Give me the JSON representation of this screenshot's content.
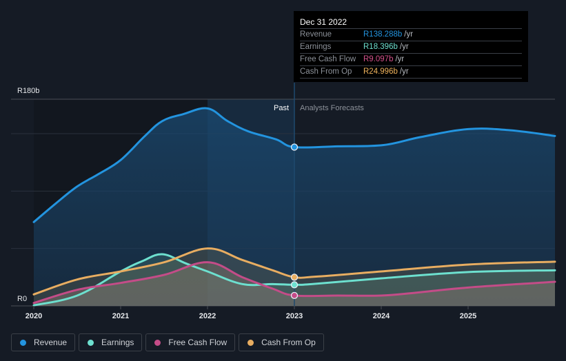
{
  "tooltip": {
    "date": "Dec 31 2022",
    "rows": [
      {
        "label": "Revenue",
        "value": "R138.288b",
        "unit": "/yr",
        "color": "#2394df"
      },
      {
        "label": "Earnings",
        "value": "R18.396b",
        "unit": "/yr",
        "color": "#6de0cf"
      },
      {
        "label": "Free Cash Flow",
        "value": "R9.097b",
        "unit": "/yr",
        "color": "#d6528c"
      },
      {
        "label": "Cash From Op",
        "value": "R24.996b",
        "unit": "/yr",
        "color": "#f0b35c"
      }
    ]
  },
  "legend": [
    {
      "label": "Revenue",
      "color": "#2394df"
    },
    {
      "label": "Earnings",
      "color": "#6de0cf"
    },
    {
      "label": "Free Cash Flow",
      "color": "#c44c88"
    },
    {
      "label": "Cash From Op",
      "color": "#e8ad61"
    }
  ],
  "chart_data": {
    "type": "area",
    "title": "",
    "xlabel": "",
    "ylabel": "",
    "y_unit": "R (billions)",
    "ylim": [
      0,
      180
    ],
    "xlim": [
      2020,
      2026
    ],
    "y_tick_labels": [
      {
        "value": 180,
        "label": "R180b"
      },
      {
        "value": 0,
        "label": "R0"
      }
    ],
    "y_gridlines": [
      0,
      50,
      100,
      150,
      180
    ],
    "x_ticks": [
      2020,
      2021,
      2022,
      2023,
      2024,
      2025
    ],
    "x_tick_labels": [
      "2020",
      "2021",
      "2022",
      "2023",
      "2024",
      "2025"
    ],
    "present_x": 2023.0,
    "region_labels": {
      "past": "Past",
      "forecast": "Analysts Forecasts"
    },
    "highlight_band": [
      2022.0,
      2023.0
    ],
    "series": [
      {
        "name": "Revenue",
        "color": "#2394df",
        "x": [
          2020.0,
          2020.25,
          2020.5,
          2020.75,
          2021.0,
          2021.28,
          2021.48,
          2021.72,
          2022.0,
          2022.23,
          2022.47,
          2022.79,
          2023.0,
          2023.5,
          2024.02,
          2024.45,
          2025.0,
          2025.48,
          2026.0
        ],
        "y": [
          73,
          89,
          104,
          115,
          127,
          148,
          161,
          167,
          172,
          161,
          152,
          145,
          138.3,
          139,
          140,
          147,
          154,
          153,
          148
        ]
      },
      {
        "name": "Earnings",
        "color": "#6de0cf",
        "x": [
          2020.0,
          2020.5,
          2021.0,
          2021.25,
          2021.48,
          2021.75,
          2022.0,
          2022.4,
          2022.75,
          2023.0,
          2023.2,
          2024.0,
          2025.0,
          2026.0
        ],
        "y": [
          0.5,
          9,
          30,
          39,
          45,
          37,
          30,
          19,
          19,
          18.4,
          19,
          24,
          29.5,
          31
        ]
      },
      {
        "name": "Free Cash Flow",
        "color": "#c44c88",
        "x": [
          2020.0,
          2020.5,
          2021.0,
          2021.5,
          2022.0,
          2022.4,
          2022.75,
          2023.0,
          2023.5,
          2024.0,
          2024.4,
          2025.0,
          2026.0
        ],
        "y": [
          2.5,
          14,
          20,
          27,
          38,
          25,
          15,
          9.1,
          9,
          9,
          11.5,
          16,
          21
        ]
      },
      {
        "name": "Cash From Op",
        "color": "#e8ad61",
        "x": [
          2020.0,
          2020.5,
          2021.0,
          2021.5,
          2022.0,
          2022.4,
          2022.75,
          2023.0,
          2023.25,
          2024.0,
          2025.0,
          2026.0
        ],
        "y": [
          10,
          23,
          30,
          38,
          50,
          40,
          31,
          25,
          25.5,
          30,
          36,
          38.5
        ]
      }
    ],
    "tooltip_points": [
      {
        "series": "Revenue",
        "x": 2023.0,
        "y": 138.288
      },
      {
        "series": "Earnings",
        "x": 2023.0,
        "y": 18.396
      },
      {
        "series": "Free Cash Flow",
        "x": 2023.0,
        "y": 9.097
      },
      {
        "series": "Cash From Op",
        "x": 2023.0,
        "y": 24.996
      }
    ]
  }
}
